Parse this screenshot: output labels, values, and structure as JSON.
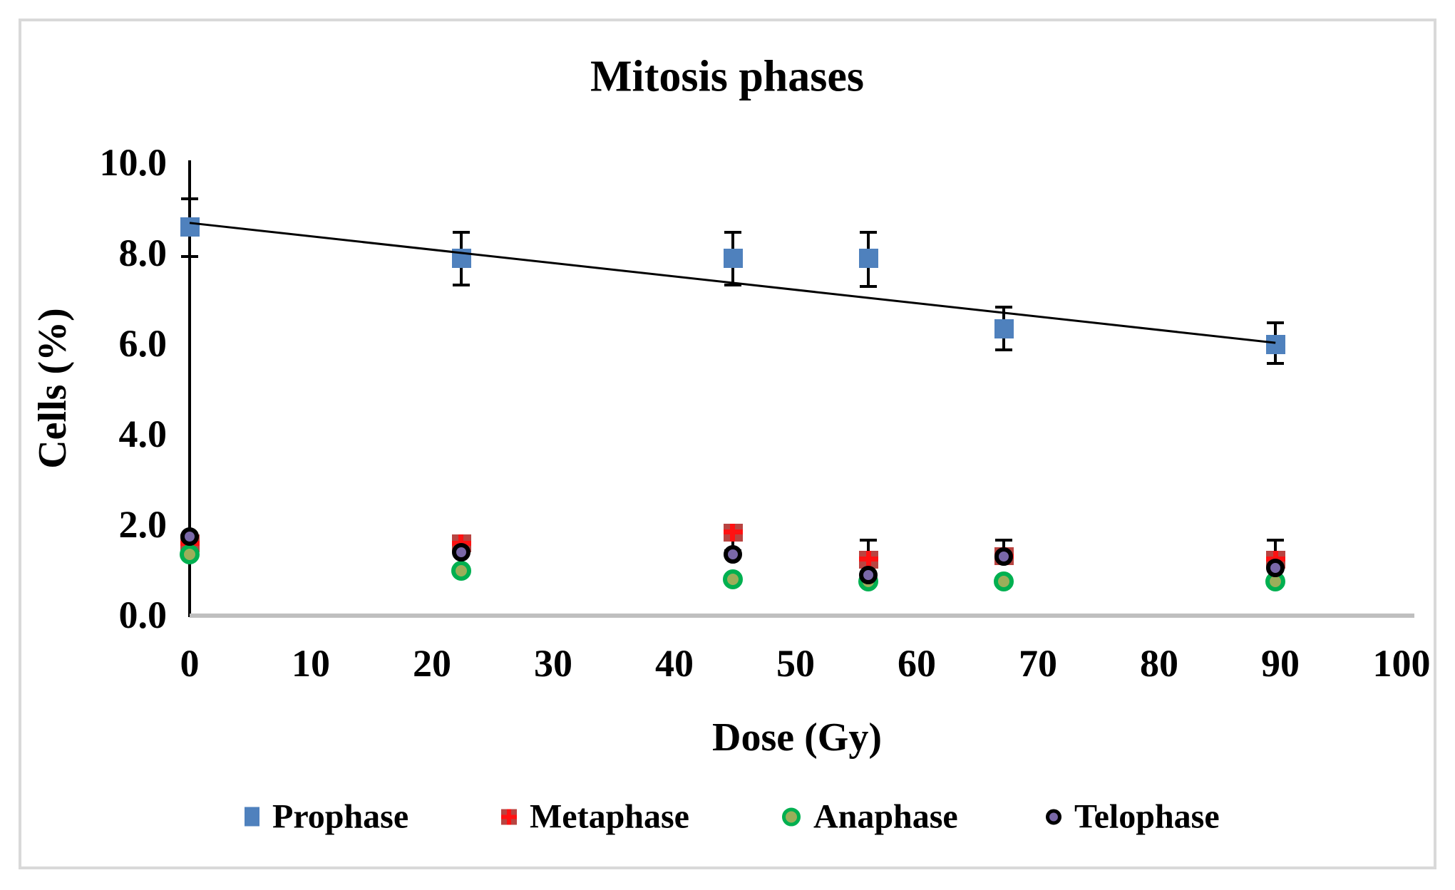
{
  "figure": {
    "background_color": "#FFFFFF",
    "border_color": "#D9D9D9"
  },
  "chart_data": {
    "type": "scatter",
    "title": "Mitosis phases",
    "xlabel": "Dose (Gy)",
    "ylabel": "Cells (%)",
    "xlim": [
      0,
      100
    ],
    "ylim": [
      0.0,
      10.0
    ],
    "grid": false,
    "legend_position": "bottom",
    "x_ticks": [
      0,
      10,
      20,
      30,
      40,
      50,
      60,
      70,
      80,
      90,
      100
    ],
    "x_tick_labels": [
      "0",
      "10",
      "20",
      "30",
      "40",
      "50",
      "60",
      "70",
      "80",
      "90",
      "100"
    ],
    "y_ticks": [
      0,
      2,
      4,
      6,
      8,
      10
    ],
    "y_tick_labels": [
      "0.0",
      "2.0",
      "4.0",
      "6.0",
      "8.0",
      "10.0"
    ],
    "x": [
      0,
      22.4,
      44.8,
      56,
      67.2,
      89.6
    ],
    "series": [
      {
        "name": "Prophase",
        "marker": "square",
        "color": "#4F81BD",
        "values": [
          8.6,
          7.9,
          7.9,
          7.9,
          6.35,
          6.0
        ],
        "err_up": [
          0.65,
          0.6,
          0.6,
          0.6,
          0.5,
          0.5
        ],
        "err_down": [
          0.7,
          0.62,
          0.62,
          0.65,
          0.5,
          0.45
        ]
      },
      {
        "name": "Metaphase",
        "marker": "square-cross",
        "color": "#B94441",
        "cross_color": "#FF1212",
        "values": [
          1.6,
          1.6,
          1.85,
          1.25,
          1.32,
          1.25
        ],
        "err_up": [
          0.15,
          0.18,
          0.1,
          0.45,
          0.38,
          0.45
        ],
        "err_down": [
          0.1,
          0.1,
          0.45,
          0.05,
          0.05,
          0.05
        ]
      },
      {
        "name": "Anaphase",
        "marker": "circle",
        "color": "#9BAE5A",
        "ring_color": "#00B050",
        "values": [
          1.35,
          1.0,
          0.8,
          0.75,
          0.75,
          0.75
        ]
      },
      {
        "name": "Telophase",
        "marker": "circle",
        "color": "#7A68A8",
        "ring_color": "#000000",
        "values": [
          1.75,
          1.4,
          1.35,
          0.9,
          1.3,
          1.05
        ]
      }
    ],
    "trendline": {
      "series": "Prophase",
      "color": "#000000",
      "x1": 0,
      "y1": 8.68,
      "x2": 89.6,
      "y2": 6.03
    }
  }
}
